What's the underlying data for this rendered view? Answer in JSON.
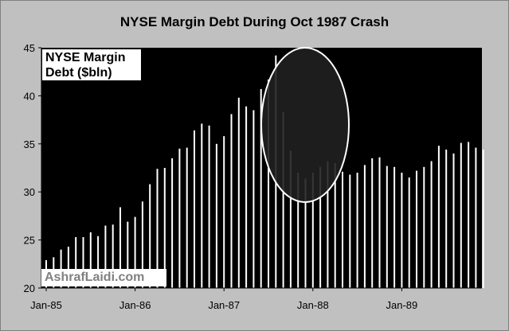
{
  "chart_data": {
    "type": "bar",
    "title": "NYSE Margin Debt During Oct 1987 Crash",
    "legend": "NYSE Margin Debt ($bln)",
    "legend_lines": [
      "NYSE Margin",
      "Debt ($bln)"
    ],
    "watermark": "AshrafLaidi.com",
    "xlabel": "",
    "ylabel": "",
    "ylim": [
      20,
      45
    ],
    "yticks": [
      20,
      25,
      30,
      35,
      40,
      45
    ],
    "xtick_labels": [
      "Jan-85",
      "Jan-86",
      "Jan-87",
      "Jan-88",
      "Jan-89"
    ],
    "grid": false,
    "background_color": "#000000",
    "bar_color": "#ffffff",
    "annotation": "ellipse highlighting Oct 1987 crash",
    "categories": [
      "1985-01",
      "1985-02",
      "1985-03",
      "1985-04",
      "1985-05",
      "1985-06",
      "1985-07",
      "1985-08",
      "1985-09",
      "1985-10",
      "1985-11",
      "1985-12",
      "1986-01",
      "1986-02",
      "1986-03",
      "1986-04",
      "1986-05",
      "1986-06",
      "1986-07",
      "1986-08",
      "1986-09",
      "1986-10",
      "1986-11",
      "1986-12",
      "1987-01",
      "1987-02",
      "1987-03",
      "1987-04",
      "1987-05",
      "1987-06",
      "1987-07",
      "1987-08",
      "1987-09",
      "1987-10",
      "1987-11",
      "1987-12",
      "1988-01",
      "1988-02",
      "1988-03",
      "1988-04",
      "1988-05",
      "1988-06",
      "1988-07",
      "1988-08",
      "1988-09",
      "1988-10",
      "1988-11",
      "1988-12",
      "1989-01",
      "1989-02",
      "1989-03",
      "1989-04",
      "1989-05",
      "1989-06",
      "1989-07",
      "1989-08",
      "1989-09",
      "1989-10",
      "1989-11",
      "1989-12"
    ],
    "values": [
      22.9,
      23.2,
      24.0,
      24.3,
      25.3,
      25.3,
      25.8,
      25.4,
      26.5,
      26.6,
      28.4,
      26.9,
      27.4,
      29.0,
      30.8,
      32.4,
      32.5,
      33.5,
      34.5,
      34.6,
      36.4,
      37.1,
      36.9,
      35.0,
      35.8,
      38.1,
      39.8,
      38.9,
      38.5,
      40.7,
      41.7,
      44.2,
      38.3,
      34.3,
      32.0,
      31.4,
      32.0,
      32.6,
      33.2,
      33.0,
      32.1,
      31.8,
      32.0,
      32.8,
      33.5,
      33.6,
      32.7,
      32.6,
      32.0,
      31.5,
      32.2,
      32.6,
      33.2,
      34.8,
      34.4,
      34.0,
      35.1,
      35.2,
      34.6,
      34.4
    ]
  }
}
